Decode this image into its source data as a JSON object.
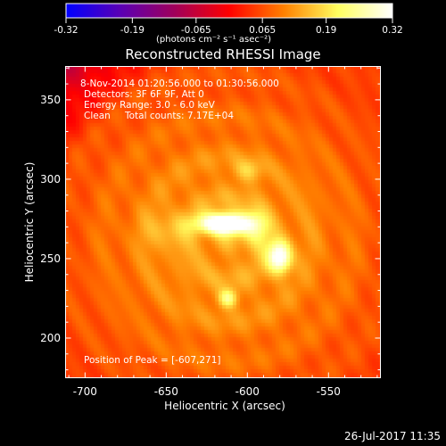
{
  "chart_data": {
    "type": "heatmap",
    "title": "Reconstructed RHESSI Image",
    "xlabel": "Heliocentric X (arcsec)",
    "ylabel": "Heliocentric Y (arcsec)",
    "xlim": [
      -712,
      -518
    ],
    "ylim": [
      175,
      371
    ],
    "x_ticks": [
      "-700",
      "-650",
      "-600",
      "-550"
    ],
    "x_tick_values": [
      -700,
      -650,
      -600,
      -550
    ],
    "y_ticks": [
      "200",
      "250",
      "300",
      "350"
    ],
    "y_tick_values": [
      200,
      250,
      300,
      350
    ],
    "colorbar": {
      "ticks": [
        "-0.32",
        "-0.19",
        "-0.065",
        "0.065",
        "0.19",
        "0.32"
      ],
      "tick_values": [
        -0.32,
        -0.19,
        -0.065,
        0.065,
        0.19,
        0.32
      ],
      "range": [
        -0.32,
        0.32
      ],
      "label": "(photons cm⁻² s⁻¹ asec⁻²)",
      "colormap": [
        "#0000ff",
        "#5a00b4",
        "#a0005a",
        "#ff0000",
        "#ff8000",
        "#ffff60",
        "#ffffff"
      ]
    },
    "annotations": {
      "time_range": "8-Nov-2014 01:20:56.000 to 01:30:56.000",
      "detectors": "Detectors: 3F 6F 9F, Att 0",
      "energy": "Energy Range: 3.0 - 6.0 keV",
      "clean_label": "Clean",
      "total_counts": "Total counts: 7.17E+04",
      "peak": "Position of Peak = [-607,271]"
    },
    "peak": {
      "x": -607,
      "y": 271
    },
    "sources": [
      {
        "x": -614,
        "y": 272,
        "sx": 11,
        "sy": 4.5,
        "amp": 0.32
      },
      {
        "x": -580,
        "y": 251,
        "sx": 5,
        "sy": 7,
        "amp": 0.24
      },
      {
        "x": -595,
        "y": 268,
        "sx": 6,
        "sy": 9,
        "amp": 0.1
      },
      {
        "x": -612,
        "y": 225,
        "sx": 4,
        "sy": 4,
        "amp": 0.14
      },
      {
        "x": -650,
        "y": 268,
        "sx": 10,
        "sy": 8,
        "amp": 0.05
      },
      {
        "x": -600,
        "y": 305,
        "sx": 6,
        "sy": 5,
        "amp": 0.07
      }
    ]
  },
  "footer": {
    "timestamp": "26-Jul-2017 11:35"
  }
}
